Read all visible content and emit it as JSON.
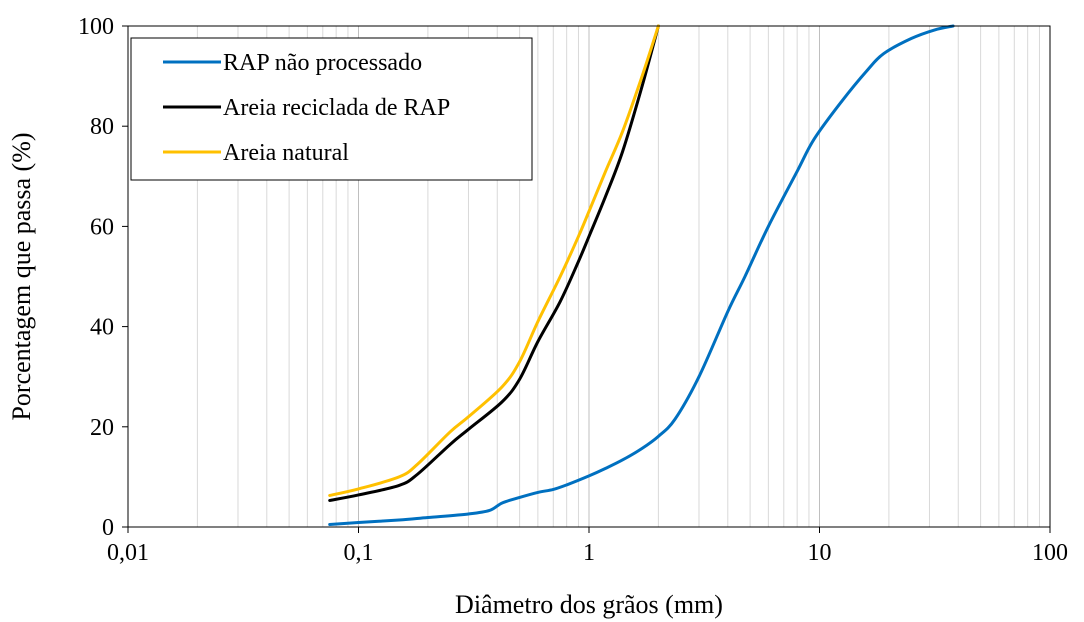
{
  "chart_data": {
    "type": "line",
    "xlabel": "Diâmetro dos grãos (mm)",
    "ylabel": "Porcentagem que passa (%)",
    "x_scale": "log",
    "xlim": [
      0.01,
      100
    ],
    "ylim": [
      0,
      100
    ],
    "x_ticks": [
      0.01,
      0.1,
      1,
      10,
      100
    ],
    "x_tick_labels": [
      "0,01",
      "0,1",
      "1",
      "10",
      "100"
    ],
    "y_ticks": [
      0,
      20,
      40,
      60,
      80,
      100
    ],
    "y_tick_labels": [
      "0",
      "20",
      "40",
      "60",
      "80",
      "100"
    ],
    "grid": {
      "x_major": true,
      "x_minor": true,
      "y": false
    },
    "legend": {
      "placement": "top-left"
    },
    "series": [
      {
        "name": "RAP não processado",
        "color": "#0070C0",
        "x": [
          0.075,
          0.1,
          0.15,
          0.2,
          0.3,
          0.37,
          0.42,
          0.5,
          0.6,
          0.7,
          0.8,
          1.0,
          1.18,
          1.4,
          1.7,
          2.0,
          2.36,
          3.0,
          4.0,
          4.75,
          6.0,
          8.0,
          9.5,
          12.5,
          16.0,
          19.0,
          25.0,
          31.5,
          38.0
        ],
        "y": [
          0.5,
          0.9,
          1.4,
          1.9,
          2.6,
          3.3,
          4.8,
          5.9,
          6.9,
          7.5,
          8.4,
          10.2,
          11.7,
          13.4,
          15.7,
          18.1,
          21.5,
          30.0,
          43.0,
          50.0,
          60.0,
          71.0,
          77.5,
          85.0,
          91.0,
          94.5,
          97.5,
          99.2,
          100.0
        ]
      },
      {
        "name": "Areia reciclada de RAP",
        "color": "#000000",
        "x": [
          0.075,
          0.1,
          0.15,
          0.18,
          0.25,
          0.3,
          0.42,
          0.5,
          0.6,
          0.75,
          0.9,
          1.0,
          1.18,
          1.4,
          1.7,
          2.0
        ],
        "y": [
          5.3,
          6.4,
          8.3,
          10.5,
          16.5,
          19.5,
          25.0,
          29.5,
          37.0,
          45.0,
          53.0,
          58.0,
          66.0,
          75.0,
          88.0,
          100.0
        ]
      },
      {
        "name": "Areia natural",
        "color": "#FFC000",
        "x": [
          0.075,
          0.1,
          0.15,
          0.18,
          0.25,
          0.3,
          0.42,
          0.5,
          0.6,
          0.75,
          0.9,
          1.0,
          1.18,
          1.4,
          1.7,
          2.0
        ],
        "y": [
          6.3,
          7.6,
          10.0,
          12.5,
          19.0,
          22.0,
          28.0,
          33.0,
          41.0,
          50.0,
          58.0,
          63.0,
          71.0,
          79.0,
          90.0,
          100.0
        ]
      }
    ]
  }
}
